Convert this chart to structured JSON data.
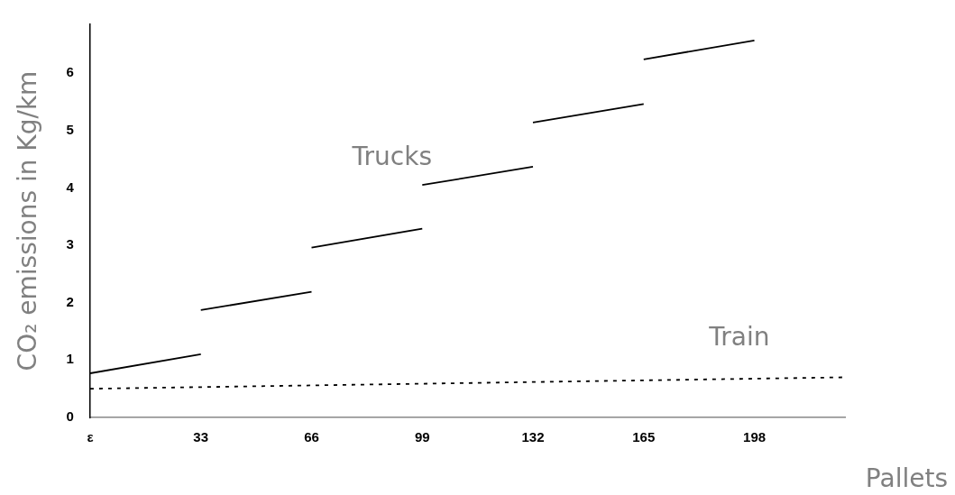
{
  "chart_data": {
    "type": "line",
    "xlabel": "Pallets",
    "ylabel": "CO₂ emissions in Kg/km",
    "xlim": [
      0,
      225
    ],
    "xticks": [
      {
        "value": 0,
        "label": "ε"
      },
      33,
      66,
      99,
      132,
      165,
      198
    ],
    "ylim": [
      0,
      6.85
    ],
    "yticks": [
      0,
      1,
      2,
      3,
      4,
      5,
      6
    ],
    "grid": false,
    "legend": false,
    "marker": "none",
    "series": [
      {
        "color": "#000000",
        "line_style": "solid",
        "x": [
          0,
          33
        ],
        "values": [
          0.77,
          1.1
        ]
      },
      {
        "color": "#000000",
        "line_style": "solid",
        "x": [
          33,
          66
        ],
        "values": [
          1.87,
          2.19
        ]
      },
      {
        "color": "#000000",
        "line_style": "solid",
        "x": [
          66,
          99
        ],
        "values": [
          2.96,
          3.29
        ]
      },
      {
        "name": "Trucks",
        "color": "#000000",
        "line_style": "solid",
        "x": [
          99,
          132
        ],
        "values": [
          4.05,
          4.37
        ]
      },
      {
        "color": "#000000",
        "line_style": "solid",
        "x": [
          132,
          165
        ],
        "values": [
          5.14,
          5.46
        ]
      },
      {
        "color": "#000000",
        "line_style": "solid",
        "x": [
          165,
          198
        ],
        "values": [
          6.24,
          6.57
        ]
      },
      {
        "name": "Train",
        "color": "#000000",
        "line_style": "dashed",
        "x": [
          0,
          225
        ],
        "values": [
          0.5,
          0.7
        ]
      }
    ]
  }
}
